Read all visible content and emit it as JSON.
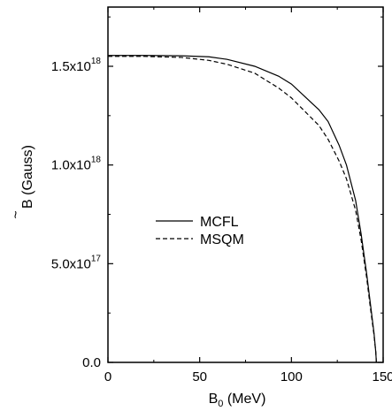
{
  "chart_data": {
    "type": "line",
    "xlabel": "B",
    "xlabel_sub": "0",
    "xlabel_unit": " (MeV)",
    "ylabel": "B",
    "ylabel_unit": " (Gauss)",
    "xlim": [
      0,
      150
    ],
    "ylim": [
      0,
      1.8e+18
    ],
    "x_ticks": [
      {
        "value": 0,
        "label": "0"
      },
      {
        "value": 50,
        "label": "50"
      },
      {
        "value": 100,
        "label": "100"
      },
      {
        "value": 150,
        "label": "150"
      }
    ],
    "y_ticks": [
      {
        "value": 0,
        "label": "0.0",
        "mantissa": "0.0",
        "exp": ""
      },
      {
        "value": 5e+17,
        "label": "5.0x10^17",
        "mantissa": "5.0x10",
        "exp": "17"
      },
      {
        "value": 1e+18,
        "label": "1.0x10^18",
        "mantissa": "1.0x10",
        "exp": "18"
      },
      {
        "value": 1.5e+18,
        "label": "1.5x10^18",
        "mantissa": "1.5x10",
        "exp": "18"
      }
    ],
    "legend_position": "center-left",
    "grid": false,
    "series": [
      {
        "name": "MCFL",
        "style": "solid",
        "x": [
          0,
          20,
          40,
          55,
          65,
          80,
          93,
          100,
          115,
          120,
          126,
          130,
          135,
          138,
          141,
          143,
          145,
          146,
          146.3
        ],
        "y": [
          1.555e+18,
          1.555e+18,
          1.553e+18,
          1.548e+18,
          1.535e+18,
          1.5e+18,
          1.45e+18,
          1.41e+18,
          1.28e+18,
          1.22e+18,
          1.1e+18,
          1e+18,
          8.2e+17,
          6.5e+17,
          4.5e+17,
          3e+17,
          1.5e+17,
          5e+16,
          0.0
        ]
      },
      {
        "name": "MSQM",
        "style": "dashed",
        "x": [
          0,
          20,
          40,
          55,
          65,
          80,
          93,
          100,
          115,
          120,
          126,
          130,
          135,
          138,
          141,
          143,
          145,
          146,
          146.3
        ],
        "y": [
          1.55e+18,
          1.55e+18,
          1.545e+18,
          1.53e+18,
          1.51e+18,
          1.465e+18,
          1.39e+18,
          1.34e+18,
          1.2e+18,
          1.13e+18,
          1.02e+18,
          9.3e+17,
          7.7e+17,
          6.2e+17,
          4.3e+17,
          2.8e+17,
          1.4e+17,
          5e+16,
          0.0
        ]
      }
    ]
  }
}
